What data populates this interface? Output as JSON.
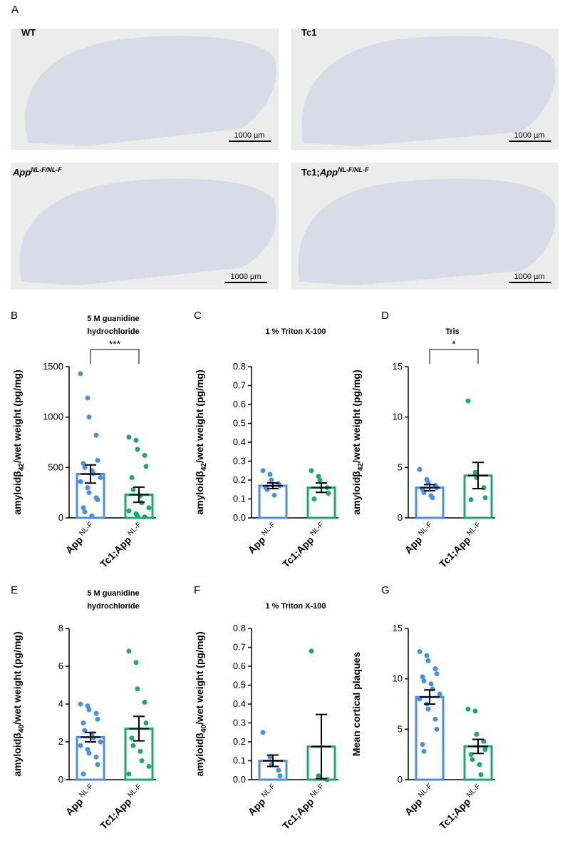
{
  "panel_a": {
    "letter": "A",
    "scale_bar": "1000 µm",
    "images": [
      {
        "label": "WT"
      },
      {
        "label": "Tc1"
      },
      {
        "label": "App",
        "superscript": "NL-F/NL-F"
      },
      {
        "prefix": "Tc1;",
        "label": "App",
        "superscript": "NL-F/NL-F"
      }
    ]
  },
  "chart_data": [
    {
      "type": "bar",
      "letter": "B",
      "title": [
        "5 M guanidine",
        "hydrochloride"
      ],
      "ylabel": {
        "text": "amyloidβ",
        "subscript": "42",
        "suffix": "/wet weight (pg/mg)"
      },
      "categories": [
        "App",
        "Tc1;App"
      ],
      "category_superscript": "NL-F",
      "values": [
        435,
        230
      ],
      "errors": [
        90,
        75
      ],
      "colors": [
        "#4a90e2",
        "#1aaa6e"
      ],
      "points": [
        [
          1430,
          1190,
          1000,
          820,
          570,
          540,
          500,
          470,
          440,
          400,
          360,
          300,
          250,
          200,
          180,
          100,
          60,
          20
        ],
        [
          800,
          770,
          680,
          620,
          510,
          400,
          280,
          220,
          150,
          100,
          70,
          40,
          20,
          10
        ]
      ],
      "ylim": [
        0,
        1500
      ],
      "yticks": [
        0,
        500,
        1000,
        1500
      ],
      "significance": "***"
    },
    {
      "type": "bar",
      "letter": "C",
      "title": [
        "1 % Triton X-100"
      ],
      "ylabel": {
        "text": "amyloidβ",
        "subscript": "42",
        "suffix": "/wet weight (pg/mg)"
      },
      "categories": [
        "App",
        "Tc1;App"
      ],
      "category_superscript": "NL-F",
      "values": [
        0.17,
        0.16
      ],
      "errors": [
        0.015,
        0.025
      ],
      "colors": [
        "#4a90e2",
        "#1aaa6e"
      ],
      "points": [
        [
          0.25,
          0.23,
          0.2,
          0.18,
          0.17,
          0.16,
          0.15,
          0.12
        ],
        [
          0.25,
          0.22,
          0.2,
          0.16,
          0.13,
          0.1
        ]
      ],
      "ylim": [
        0,
        0.8
      ],
      "yticks": [
        {
          "value": 0,
          "label": "0.0"
        },
        0.1,
        0.2,
        0.3,
        0.4,
        0.5,
        0.6,
        0.7,
        0.8
      ]
    },
    {
      "type": "bar",
      "letter": "D",
      "title": [
        "Tris"
      ],
      "ylabel": {
        "text": "amyloidβ",
        "subscript": "42",
        "suffix": "/wet weight (pg/mg)"
      },
      "categories": [
        "App",
        "Tc1;App"
      ],
      "category_superscript": "NL-F",
      "values": [
        3.0,
        4.2
      ],
      "errors": [
        0.3,
        1.3
      ],
      "colors": [
        "#4a90e2",
        "#1aaa6e"
      ],
      "points": [
        [
          4.8,
          3.8,
          3.5,
          3.2,
          3.0,
          2.8,
          2.5,
          2.2,
          2.0
        ],
        [
          11.6,
          4.5,
          4.0,
          3.0,
          2.0,
          1.8
        ]
      ],
      "ylim": [
        0,
        15
      ],
      "yticks": [
        0,
        5,
        10,
        15
      ],
      "significance": "*"
    },
    {
      "type": "bar",
      "letter": "E",
      "title": [
        "5 M guanidine",
        "hydrochloride"
      ],
      "ylabel": {
        "text": "amyloidβ",
        "subscript": "40",
        "suffix": "/wet weight (pg/mg)"
      },
      "categories": [
        "App",
        "Tc1;App"
      ],
      "category_superscript": "NL-F",
      "values": [
        2.25,
        2.7
      ],
      "errors": [
        0.25,
        0.65
      ],
      "colors": [
        "#4a90e2",
        "#1aaa6e"
      ],
      "points": [
        [
          4.0,
          3.9,
          3.7,
          3.5,
          3.2,
          3.0,
          2.6,
          2.4,
          2.2,
          2.0,
          1.8,
          1.6,
          1.4,
          1.2,
          0.8,
          0.3
        ],
        [
          6.8,
          6.2,
          4.8,
          4.1,
          3.0,
          2.2,
          1.8,
          1.5,
          1.0,
          0.7,
          0.3
        ]
      ],
      "ylim": [
        0,
        8
      ],
      "yticks": [
        0,
        2,
        4,
        6,
        8
      ]
    },
    {
      "type": "bar",
      "letter": "F",
      "title": [
        "1 % Triton X-100"
      ],
      "ylabel": {
        "text": "amyloidβ",
        "subscript": "40",
        "suffix": "/wet weight (pg/mg)"
      },
      "categories": [
        "App",
        "Tc1;App"
      ],
      "category_superscript": "NL-F",
      "values": [
        0.1,
        0.175
      ],
      "errors": [
        0.03,
        0.17
      ],
      "colors": [
        "#4a90e2",
        "#1aaa6e"
      ],
      "points": [
        [
          0.25,
          0.12,
          0.08,
          0.05,
          0.02
        ],
        [
          0.68,
          0.02,
          0.01,
          0.0
        ]
      ],
      "ylim": [
        0,
        0.8
      ],
      "yticks": [
        {
          "value": 0,
          "label": "0.0"
        },
        0.1,
        0.2,
        0.3,
        0.4,
        0.5,
        0.6,
        0.7,
        0.8
      ]
    },
    {
      "type": "bar",
      "letter": "G",
      "ylabel": "Mean cortical plaques",
      "categories": [
        "App",
        "Tc1;App"
      ],
      "category_superscript": "NL-F",
      "values": [
        8.2,
        3.3
      ],
      "errors": [
        0.7,
        0.7
      ],
      "colors": [
        "#4a90e2",
        "#1aaa6e"
      ],
      "points": [
        [
          12.7,
          12.3,
          11.8,
          11.0,
          10.5,
          10.2,
          9.8,
          9.5,
          9.0,
          8.5,
          8.0,
          7.5,
          7.0,
          6.0,
          5.0,
          3.5,
          2.8
        ],
        [
          7.0,
          6.8,
          4.5,
          3.8,
          3.0,
          2.5,
          2.0,
          1.5,
          0.5
        ]
      ],
      "ylim": [
        0,
        15
      ],
      "yticks": [
        0,
        5,
        10,
        15
      ]
    }
  ]
}
